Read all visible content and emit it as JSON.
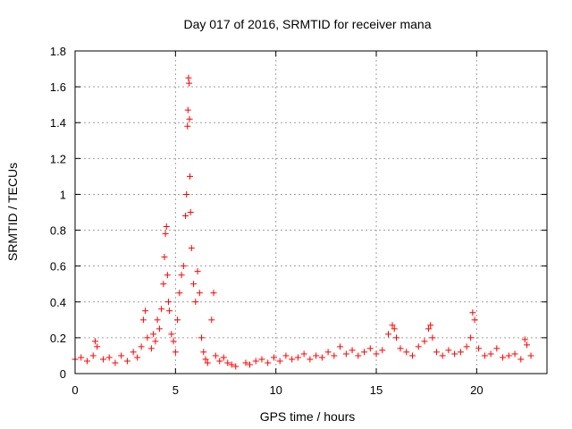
{
  "chart_data": {
    "type": "scatter",
    "title": "Day 017 of 2016, SRMTID for receiver mana",
    "xlabel": "GPS time / hours",
    "ylabel": "SRMTID / TECUs",
    "xlim": [
      0,
      23.5
    ],
    "ylim": [
      0,
      1.8
    ],
    "xticks": [
      0,
      5,
      10,
      15,
      20
    ],
    "xtick_labels": [
      "0",
      "5",
      "10",
      "15",
      "20"
    ],
    "yticks": [
      0,
      0.2,
      0.4,
      0.6,
      0.8,
      1.0,
      1.2,
      1.4,
      1.6,
      1.8
    ],
    "ytick_labels": [
      "0",
      "0.2",
      "0.4",
      "0.6",
      "0.8",
      "1",
      "1.2",
      "1.4",
      "1.6",
      "1.8"
    ],
    "grid": true,
    "marker": "+",
    "marker_color": "#ff0000",
    "series": [
      {
        "name": "SRMTID",
        "x": [
          0.0,
          0.3,
          0.6,
          0.9,
          1.0,
          1.1,
          1.4,
          1.7,
          2.0,
          2.3,
          2.6,
          2.9,
          3.1,
          3.3,
          3.4,
          3.5,
          3.6,
          3.8,
          3.9,
          4.0,
          4.1,
          4.2,
          4.3,
          4.4,
          4.45,
          4.5,
          4.55,
          4.6,
          4.65,
          4.7,
          4.8,
          4.9,
          5.0,
          5.1,
          5.2,
          5.3,
          5.4,
          5.5,
          5.55,
          5.6,
          5.62,
          5.65,
          5.68,
          5.7,
          5.72,
          5.75,
          5.8,
          5.9,
          6.0,
          6.1,
          6.2,
          6.3,
          6.4,
          6.5,
          6.6,
          6.8,
          6.9,
          7.0,
          7.2,
          7.4,
          7.6,
          7.8,
          8.0,
          8.5,
          8.7,
          9.0,
          9.3,
          9.6,
          9.9,
          10.2,
          10.5,
          10.8,
          11.1,
          11.4,
          11.7,
          12.0,
          12.3,
          12.6,
          12.9,
          13.2,
          13.5,
          13.8,
          14.1,
          14.4,
          14.7,
          15.0,
          15.3,
          15.6,
          15.8,
          15.9,
          16.0,
          16.2,
          16.5,
          16.8,
          17.1,
          17.4,
          17.6,
          17.7,
          17.8,
          18.0,
          18.3,
          18.6,
          18.9,
          19.2,
          19.5,
          19.7,
          19.8,
          19.9,
          20.1,
          20.4,
          20.7,
          21.0,
          21.3,
          21.6,
          21.9,
          22.2,
          22.4,
          22.5,
          22.7
        ],
        "y": [
          0.08,
          0.09,
          0.07,
          0.1,
          0.18,
          0.15,
          0.08,
          0.09,
          0.06,
          0.1,
          0.07,
          0.12,
          0.09,
          0.15,
          0.3,
          0.35,
          0.2,
          0.14,
          0.22,
          0.18,
          0.3,
          0.25,
          0.36,
          0.5,
          0.65,
          0.78,
          0.82,
          0.55,
          0.4,
          0.35,
          0.22,
          0.18,
          0.12,
          0.3,
          0.45,
          0.55,
          0.6,
          0.88,
          1.0,
          1.38,
          1.47,
          1.65,
          1.62,
          1.42,
          1.1,
          0.9,
          0.7,
          0.5,
          0.4,
          0.57,
          0.45,
          0.2,
          0.12,
          0.08,
          0.06,
          0.3,
          0.45,
          0.1,
          0.07,
          0.09,
          0.06,
          0.05,
          0.04,
          0.06,
          0.05,
          0.07,
          0.08,
          0.06,
          0.09,
          0.07,
          0.1,
          0.08,
          0.09,
          0.11,
          0.08,
          0.1,
          0.09,
          0.12,
          0.1,
          0.15,
          0.11,
          0.13,
          0.1,
          0.12,
          0.14,
          0.11,
          0.13,
          0.22,
          0.27,
          0.25,
          0.2,
          0.14,
          0.12,
          0.1,
          0.15,
          0.18,
          0.25,
          0.27,
          0.2,
          0.12,
          0.1,
          0.13,
          0.11,
          0.12,
          0.15,
          0.2,
          0.34,
          0.3,
          0.14,
          0.1,
          0.11,
          0.14,
          0.09,
          0.1,
          0.11,
          0.08,
          0.19,
          0.16,
          0.1
        ]
      }
    ]
  }
}
